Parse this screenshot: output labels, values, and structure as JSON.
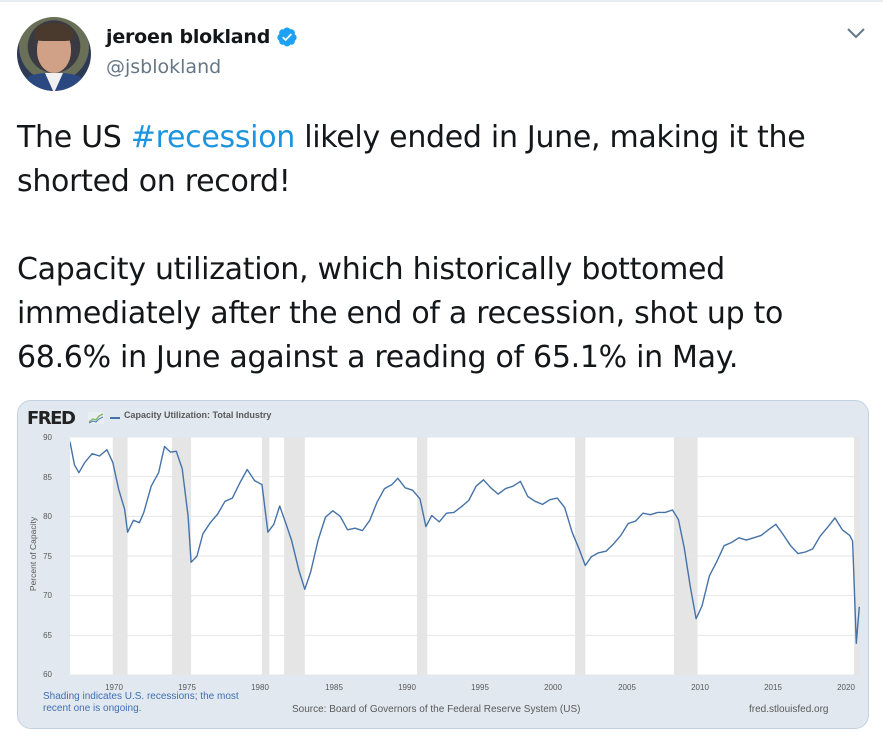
{
  "tweet": {
    "author": {
      "display_name": "jeroen blokland",
      "handle": "@jsblokland",
      "verified": true,
      "avatar": "profile-photo"
    },
    "menu_icon": "chevron-down-icon",
    "text": {
      "line1_pre": "The US ",
      "hashtag": "#recession",
      "line1_post": " likely ended in June, making it the shorted on record!",
      "paragraph2": "Capacity utilization, which historically bottomed immediately after the end of a recession, shot up to 68.6% in June against a reading of 65.1% in May."
    },
    "colors": {
      "hashtag": "#1b95e0",
      "text": "#14171a",
      "handle": "#657786",
      "verified": "#1da1f2"
    }
  },
  "card": {
    "logo": "FRED",
    "legend_label": "Capacity Utilization: Total Industry",
    "ylabel": "Percent of Capacity",
    "note": "Shading indicates U.S. recessions; the most recent one is ongoing.",
    "source": "Source: Board of Governors of the Federal Reserve System (US)",
    "site": "fred.stlouisfed.org",
    "line_color": "#4572a7",
    "background": "#e1e8f0",
    "recession_shade": "#e5e5e5"
  },
  "chart_data": {
    "type": "line",
    "title": "Capacity Utilization: Total Industry",
    "xlabel": "",
    "ylabel": "Percent of Capacity",
    "ylim": [
      60,
      90
    ],
    "xlim": [
      1967,
      2020.5
    ],
    "yticks": [
      60,
      65,
      70,
      75,
      80,
      85,
      90
    ],
    "xticks": [
      1970,
      1975,
      1980,
      1985,
      1990,
      1995,
      2000,
      2005,
      2010,
      2015,
      2020
    ],
    "grid": true,
    "legend_position": "top-left",
    "recessions": [
      [
        1969.9,
        1970.9
      ],
      [
        1973.9,
        1975.2
      ],
      [
        1980.0,
        1980.5
      ],
      [
        1981.5,
        1982.9
      ],
      [
        1990.5,
        1991.2
      ],
      [
        2001.2,
        2001.9
      ],
      [
        2007.9,
        2009.5
      ],
      [
        2020.1,
        2020.5
      ]
    ],
    "series": [
      {
        "name": "Capacity Utilization: Total Industry",
        "x": [
          1967.0,
          1967.3,
          1967.6,
          1968.0,
          1968.5,
          1969.0,
          1969.5,
          1969.9,
          1970.3,
          1970.7,
          1970.9,
          1971.3,
          1971.7,
          1972.0,
          1972.5,
          1973.0,
          1973.4,
          1973.8,
          1974.2,
          1974.6,
          1975.0,
          1975.2,
          1975.6,
          1976.0,
          1976.5,
          1977.0,
          1977.5,
          1978.0,
          1978.5,
          1979.0,
          1979.5,
          1980.0,
          1980.4,
          1980.8,
          1981.2,
          1981.6,
          1982.0,
          1982.5,
          1982.9,
          1983.3,
          1983.8,
          1984.3,
          1984.8,
          1985.3,
          1985.8,
          1986.3,
          1986.8,
          1987.3,
          1987.8,
          1988.3,
          1988.8,
          1989.2,
          1989.7,
          1990.2,
          1990.7,
          1991.1,
          1991.5,
          1992.0,
          1992.5,
          1993.0,
          1993.5,
          1994.0,
          1994.5,
          1995.0,
          1995.5,
          1996.0,
          1996.5,
          1997.0,
          1997.5,
          1998.0,
          1998.5,
          1999.0,
          1999.5,
          2000.0,
          2000.5,
          2001.0,
          2001.5,
          2001.9,
          2002.3,
          2002.8,
          2003.3,
          2003.8,
          2004.3,
          2004.8,
          2005.3,
          2005.8,
          2006.3,
          2006.8,
          2007.3,
          2007.8,
          2008.2,
          2008.6,
          2009.0,
          2009.4,
          2009.8,
          2010.3,
          2010.8,
          2011.3,
          2011.8,
          2012.3,
          2012.8,
          2013.3,
          2013.8,
          2014.3,
          2014.8,
          2015.3,
          2015.8,
          2016.3,
          2016.8,
          2017.3,
          2017.8,
          2018.3,
          2018.8,
          2019.3,
          2019.8,
          2020.0,
          2020.25,
          2020.45
        ],
        "values": [
          89.4,
          86.5,
          85.5,
          86.8,
          87.9,
          87.6,
          88.4,
          86.8,
          83.4,
          80.9,
          78.0,
          79.5,
          79.2,
          80.5,
          83.8,
          85.5,
          88.8,
          88.1,
          88.2,
          86.0,
          80.0,
          74.2,
          75.0,
          77.8,
          79.2,
          80.3,
          81.9,
          82.3,
          84.2,
          85.9,
          84.5,
          84.0,
          78.0,
          79.0,
          81.3,
          79.2,
          77.0,
          73.2,
          70.8,
          73.0,
          77.0,
          79.9,
          80.7,
          80.0,
          78.3,
          78.5,
          78.2,
          79.5,
          81.8,
          83.5,
          84.0,
          84.8,
          83.6,
          83.3,
          82.2,
          78.7,
          80.1,
          79.3,
          80.4,
          80.5,
          81.2,
          82.0,
          83.8,
          84.6,
          83.6,
          82.8,
          83.5,
          83.8,
          84.4,
          82.5,
          81.9,
          81.5,
          82.1,
          82.3,
          81.1,
          78.0,
          75.8,
          73.8,
          74.9,
          75.4,
          75.6,
          76.5,
          77.6,
          79.1,
          79.4,
          80.4,
          80.2,
          80.5,
          80.5,
          80.8,
          79.6,
          76.0,
          71.2,
          67.1,
          68.7,
          72.5,
          74.3,
          76.3,
          76.7,
          77.3,
          77.0,
          77.3,
          77.6,
          78.3,
          79.0,
          77.7,
          76.3,
          75.3,
          75.5,
          75.9,
          77.5,
          78.6,
          79.8,
          78.3,
          77.6,
          76.9,
          64.0,
          68.6
        ]
      }
    ]
  }
}
